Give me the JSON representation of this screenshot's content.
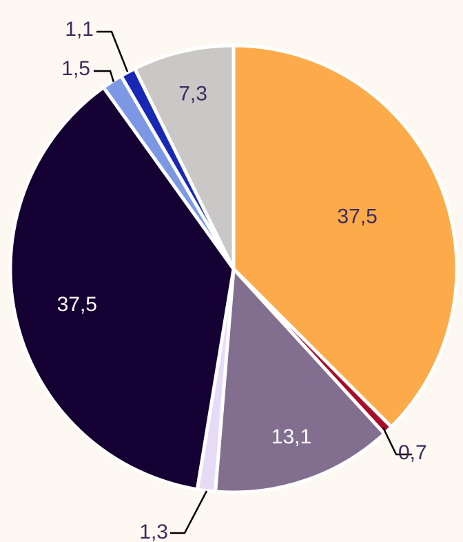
{
  "chart_data": {
    "type": "pie",
    "title": "",
    "slices": [
      {
        "label": "37,5",
        "value": 37.5,
        "color": "#fdab4a",
        "label_color": "#3e2a5c"
      },
      {
        "label": "0,7",
        "value": 0.7,
        "color": "#a50d2a",
        "label_color": "#3e2a5c"
      },
      {
        "label": "13,1",
        "value": 13.1,
        "color": "#826f90",
        "label_color": "#ffffff"
      },
      {
        "label": "1,3",
        "value": 1.3,
        "color": "#e6dbf7",
        "label_color": "#3e2a5c"
      },
      {
        "label": "37,5",
        "value": 37.5,
        "color": "#140033",
        "label_color": "#ffffff"
      },
      {
        "label": "1,5",
        "value": 1.5,
        "color": "#7c98e4",
        "label_color": "#3e2a5c"
      },
      {
        "label": "1,1",
        "value": 1.1,
        "color": "#1828b5",
        "label_color": "#3e2a5c"
      },
      {
        "label": "7,3",
        "value": 7.3,
        "color": "#c9c8c7",
        "label_color": "#3e2a5c"
      }
    ],
    "start_angle": "12 o'clock",
    "direction": "clockwise",
    "separator_color": "#ffffff",
    "leader_color": "#000000"
  }
}
